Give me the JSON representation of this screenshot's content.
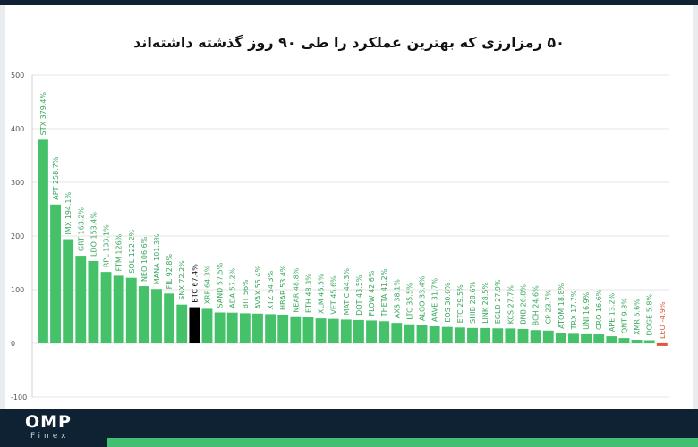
{
  "title": "۵۰ رمزارزی که بهترین عملکرد را طی ۹۰ روز گذشته داشته‌اند",
  "brand": {
    "logo_main": "OMP",
    "logo_sub": "Finex"
  },
  "colors": {
    "positive": "#45c16a",
    "negative": "#e0573a",
    "highlight": "#000000",
    "grid": "#e6e6e6",
    "axis_text": "#555555"
  },
  "chart_data": {
    "type": "bar",
    "ylim": [
      -100,
      500
    ],
    "yticks": [
      -100,
      0,
      100,
      200,
      300,
      400,
      500
    ],
    "grid": true,
    "highlight": "BTC",
    "bars": [
      {
        "label": "STX 379.4%",
        "value": 379.4
      },
      {
        "label": "APT 258.7%",
        "value": 258.7
      },
      {
        "label": "IMX 194.1%",
        "value": 194.1
      },
      {
        "label": "GRT 163.2%",
        "value": 163.2
      },
      {
        "label": "LDO 153.4%",
        "value": 153.4
      },
      {
        "label": "RPL 133.1%",
        "value": 133.1
      },
      {
        "label": "FTM 126%",
        "value": 126
      },
      {
        "label": "SOL 122.2%",
        "value": 122.2
      },
      {
        "label": "NEO 106.6%",
        "value": 106.6
      },
      {
        "label": "MANA 101.3%",
        "value": 101.3
      },
      {
        "label": "FIL 92.8%",
        "value": 92.8
      },
      {
        "label": "SNX 72.2%",
        "value": 72.2
      },
      {
        "label": "BTC 67.4%",
        "value": 67.4
      },
      {
        "label": "XRP 64.3%",
        "value": 64.3
      },
      {
        "label": "SAND 57.5%",
        "value": 57.5
      },
      {
        "label": "ADA 57.2%",
        "value": 57.2
      },
      {
        "label": "BIT 56%",
        "value": 56
      },
      {
        "label": "AVAX 55.4%",
        "value": 55.4
      },
      {
        "label": "XTZ 54.3%",
        "value": 54.3
      },
      {
        "label": "HBAR 53.4%",
        "value": 53.4
      },
      {
        "label": "NEAR 48.8%",
        "value": 48.8
      },
      {
        "label": "ETH 48.3%",
        "value": 48.3
      },
      {
        "label": "XLM 46.5%",
        "value": 46.5
      },
      {
        "label": "VET 45.6%",
        "value": 45.6
      },
      {
        "label": "MATIC 44.3%",
        "value": 44.3
      },
      {
        "label": "DOT 43.5%",
        "value": 43.5
      },
      {
        "label": "FLOW 42.6%",
        "value": 42.6
      },
      {
        "label": "THETA 41.2%",
        "value": 41.2
      },
      {
        "label": "AXS 38.1%",
        "value": 38.1
      },
      {
        "label": "LTC 35.5%",
        "value": 35.5
      },
      {
        "label": "ALGO 33.4%",
        "value": 33.4
      },
      {
        "label": "AAVE 31.7%",
        "value": 31.7
      },
      {
        "label": "EOS 30.6%",
        "value": 30.6
      },
      {
        "label": "ETC 29.5%",
        "value": 29.5
      },
      {
        "label": "SHIB 28.6%",
        "value": 28.6
      },
      {
        "label": "LINK 28.5%",
        "value": 28.5
      },
      {
        "label": "EGLD 27.9%",
        "value": 27.9
      },
      {
        "label": "KCS 27.7%",
        "value": 27.7
      },
      {
        "label": "BNB 26.8%",
        "value": 26.8
      },
      {
        "label": "BCH 24.6%",
        "value": 24.6
      },
      {
        "label": "ICP 23.7%",
        "value": 23.7
      },
      {
        "label": "ATOM 18.8%",
        "value": 18.8
      },
      {
        "label": "TRX 17.7%",
        "value": 17.7
      },
      {
        "label": "UNI 16.9%",
        "value": 16.9
      },
      {
        "label": "CRO 16.6%",
        "value": 16.6
      },
      {
        "label": "APE 13.2%",
        "value": 13.2
      },
      {
        "label": "QNT 9.8%",
        "value": 9.8
      },
      {
        "label": "XMR 6.6%",
        "value": 6.6
      },
      {
        "label": "DOGE 5.8%",
        "value": 5.8
      },
      {
        "label": "LEO -4.9%",
        "value": -4.9
      }
    ]
  }
}
